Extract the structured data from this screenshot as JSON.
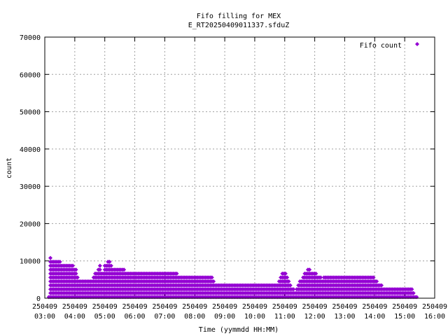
{
  "chart_data": {
    "type": "scatter",
    "title_line1": "Fifo filling for MEX",
    "title_line2": "E_RT20250409011337.sfduZ",
    "xlabel": "Time (yymmdd HH:MM)",
    "ylabel": "count",
    "xlim": [
      "250409 03:00",
      "250409 16:00"
    ],
    "ylim": [
      0,
      70000
    ],
    "grid": true,
    "legend_position": "top-right",
    "marker_color": "#9400d3",
    "x_ticks": [
      {
        "date": "250409",
        "time": "03:00"
      },
      {
        "date": "250409",
        "time": "04:00"
      },
      {
        "date": "250409",
        "time": "05:00"
      },
      {
        "date": "250409",
        "time": "06:00"
      },
      {
        "date": "250409",
        "time": "07:00"
      },
      {
        "date": "250409",
        "time": "08:00"
      },
      {
        "date": "250409",
        "time": "09:00"
      },
      {
        "date": "250409",
        "time": "10:00"
      },
      {
        "date": "250409",
        "time": "11:00"
      },
      {
        "date": "250409",
        "time": "12:00"
      },
      {
        "date": "250409",
        "time": "13:00"
      },
      {
        "date": "250409",
        "time": "14:00"
      },
      {
        "date": "250409",
        "time": "15:00"
      },
      {
        "date": "250409",
        "time": "16:00"
      }
    ],
    "y_ticks": [
      "0",
      "10000",
      "20000",
      "30000",
      "40000",
      "50000",
      "60000",
      "70000"
    ],
    "series": [
      {
        "name": "Fifo count",
        "envelope": [
          [
            "250409 03:00",
            300
          ],
          [
            "250409 03:08",
            800
          ],
          [
            "250409 03:10",
            11000
          ],
          [
            "250409 03:20",
            10500
          ],
          [
            "250409 03:30",
            9800
          ],
          [
            "250409 03:45",
            9500
          ],
          [
            "250409 04:00",
            8500
          ],
          [
            "250409 04:10",
            5000
          ],
          [
            "250409 04:20",
            4600
          ],
          [
            "250409 04:35",
            5500
          ],
          [
            "250409 04:50",
            9000
          ],
          [
            "250409 04:55",
            6000
          ],
          [
            "250409 05:00",
            9500
          ],
          [
            "250409 05:10",
            10000
          ],
          [
            "250409 05:15",
            8500
          ],
          [
            "250409 05:20",
            7800
          ],
          [
            "250409 06:00",
            7500
          ],
          [
            "250409 07:00",
            7200
          ],
          [
            "250409 07:30",
            6500
          ],
          [
            "250409 08:00",
            6200
          ],
          [
            "250409 08:35",
            6000
          ],
          [
            "250409 08:40",
            4000
          ],
          [
            "250409 09:00",
            3800
          ],
          [
            "250409 10:00",
            3700
          ],
          [
            "250409 10:45",
            4000
          ],
          [
            "250409 11:00",
            8000
          ],
          [
            "250409 11:10",
            4000
          ],
          [
            "250409 11:20",
            2000
          ],
          [
            "250409 11:30",
            4500
          ],
          [
            "250409 11:45",
            8000
          ],
          [
            "250409 12:00",
            7200
          ],
          [
            "250409 12:15",
            5500
          ],
          [
            "250409 12:30",
            6000
          ],
          [
            "250409 13:00",
            5800
          ],
          [
            "250409 13:30",
            5800
          ],
          [
            "250409 14:00",
            5600
          ],
          [
            "250409 14:10",
            3500
          ],
          [
            "250409 14:40",
            3200
          ],
          [
            "250409 15:00",
            3400
          ],
          [
            "250409 15:15",
            3000
          ],
          [
            "250409 15:20",
            1000
          ],
          [
            "250409 15:25",
            300
          ]
        ]
      }
    ]
  }
}
